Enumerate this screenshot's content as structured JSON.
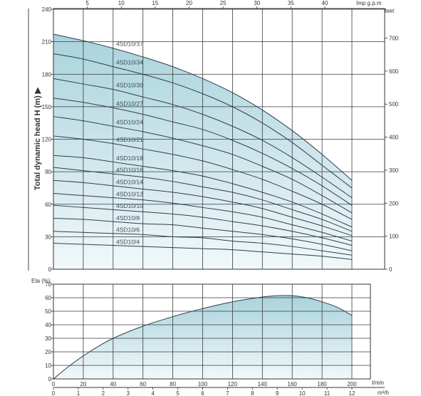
{
  "colors": {
    "fill_dark": "#a9d3dc",
    "fill_light": "#f1f8fa",
    "curve": "#2f3f4a",
    "grid": "#3a3a3a",
    "axis": "#333333",
    "text": "#333333"
  },
  "chart_data": [
    {
      "type": "line",
      "xlabel": "l/min",
      "ylabel": "Total dynamic head   H (m) ▶",
      "xlim": [
        0,
        200
      ],
      "ylim": [
        0,
        240
      ],
      "grid": true,
      "shaded_envelope": "4SD10/37",
      "axes": {
        "top": {
          "label": "Imp g.p.m",
          "ticks": [
            "5",
            "10",
            "15",
            "20",
            "25",
            "30",
            "35",
            "40"
          ],
          "tick_values": [
            5,
            10,
            15,
            20,
            25,
            30,
            35,
            40
          ]
        },
        "left": {
          "ticks": [
            "0",
            "30",
            "60",
            "90",
            "120",
            "150",
            "180",
            "210",
            "240"
          ],
          "tick_values": [
            0,
            30,
            60,
            90,
            120,
            150,
            180,
            210,
            240
          ]
        },
        "right": {
          "label": "feet",
          "ticks": [
            "0",
            "100",
            "200",
            "300",
            "400",
            "500",
            "600",
            "700"
          ],
          "tick_values": [
            0,
            100,
            200,
            300,
            400,
            500,
            600,
            700
          ]
        }
      },
      "x_grid": [
        0,
        20,
        40,
        60,
        80,
        100,
        120,
        140,
        160,
        180,
        200
      ],
      "series": [
        {
          "name": "4SD10/37",
          "x": [
            0,
            20,
            40,
            60,
            80,
            100,
            120,
            140,
            160,
            180,
            200
          ],
          "y": [
            217,
            211,
            204,
            196,
            187,
            176,
            163,
            147,
            128,
            106,
            82
          ]
        },
        {
          "name": "4SD10/34",
          "x": [
            0,
            20,
            40,
            60,
            80,
            100,
            120,
            140,
            160,
            180,
            200
          ],
          "y": [
            199,
            194,
            187,
            180,
            172,
            162,
            150,
            135,
            117,
            96,
            75
          ]
        },
        {
          "name": "4SD10/30",
          "x": [
            0,
            20,
            40,
            60,
            80,
            100,
            120,
            140,
            160,
            180,
            200
          ],
          "y": [
            176,
            171,
            166,
            159,
            152,
            143,
            132,
            119,
            103,
            85,
            66
          ]
        },
        {
          "name": "4SD10/27",
          "x": [
            0,
            20,
            40,
            60,
            80,
            100,
            120,
            140,
            160,
            180,
            200
          ],
          "y": [
            158,
            154,
            149,
            143,
            136,
            129,
            119,
            107,
            93,
            77,
            59
          ]
        },
        {
          "name": "4SD10/24",
          "x": [
            0,
            20,
            40,
            60,
            80,
            100,
            120,
            140,
            160,
            180,
            200
          ],
          "y": [
            141,
            137,
            132,
            127,
            121,
            114,
            106,
            95,
            83,
            68,
            52
          ]
        },
        {
          "name": "4SD10/21",
          "x": [
            0,
            20,
            40,
            60,
            80,
            100,
            120,
            140,
            160,
            180,
            200
          ],
          "y": [
            123,
            120,
            116,
            111,
            106,
            100,
            92,
            83,
            72,
            60,
            46
          ]
        },
        {
          "name": "4SD10/18",
          "x": [
            0,
            20,
            40,
            60,
            80,
            100,
            120,
            140,
            160,
            180,
            200
          ],
          "y": [
            105,
            103,
            99,
            95,
            91,
            86,
            79,
            71,
            62,
            51,
            39
          ]
        },
        {
          "name": "4SD10/16",
          "x": [
            0,
            20,
            40,
            60,
            80,
            100,
            120,
            140,
            160,
            180,
            200
          ],
          "y": [
            94,
            91,
            88,
            85,
            81,
            76,
            71,
            64,
            55,
            46,
            35
          ]
        },
        {
          "name": "4SD10/14",
          "x": [
            0,
            20,
            40,
            60,
            80,
            100,
            120,
            140,
            160,
            180,
            200
          ],
          "y": [
            82,
            80,
            77,
            74,
            71,
            67,
            62,
            56,
            48,
            40,
            31
          ]
        },
        {
          "name": "4SD10/12",
          "x": [
            0,
            20,
            40,
            60,
            80,
            100,
            120,
            140,
            160,
            180,
            200
          ],
          "y": [
            70,
            68,
            66,
            64,
            61,
            57,
            53,
            48,
            41,
            34,
            26
          ]
        },
        {
          "name": "4SD10/10",
          "x": [
            0,
            20,
            40,
            60,
            80,
            100,
            120,
            140,
            160,
            180,
            200
          ],
          "y": [
            59,
            57,
            55,
            53,
            51,
            48,
            44,
            40,
            35,
            29,
            22
          ]
        },
        {
          "name": "4SD10/8",
          "x": [
            0,
            20,
            40,
            60,
            80,
            100,
            120,
            140,
            160,
            180,
            200
          ],
          "y": [
            47,
            46,
            44,
            42,
            41,
            38,
            35,
            32,
            28,
            23,
            17
          ]
        },
        {
          "name": "4SD10/6",
          "x": [
            0,
            20,
            40,
            60,
            80,
            100,
            120,
            140,
            160,
            180,
            200
          ],
          "y": [
            35,
            34,
            33,
            32,
            30,
            29,
            26,
            24,
            21,
            17,
            13
          ]
        },
        {
          "name": "4SD10/4",
          "x": [
            0,
            20,
            40,
            60,
            80,
            100,
            120,
            140,
            160,
            180,
            200
          ],
          "y": [
            24,
            23,
            22,
            21,
            20,
            19,
            18,
            16,
            14,
            12,
            9
          ]
        }
      ]
    },
    {
      "type": "area",
      "ylabel": "Eta (%)",
      "xlabel": "l/min",
      "xlim": [
        0,
        200
      ],
      "ylim": [
        0,
        70
      ],
      "grid": true,
      "axes": {
        "left": {
          "ticks": [
            "0",
            "10",
            "20",
            "30",
            "40",
            "50",
            "60",
            "70"
          ],
          "tick_values": [
            0,
            10,
            20,
            30,
            40,
            50,
            60,
            70
          ]
        },
        "bottom": {
          "label": "l/min",
          "ticks": [
            "0",
            "20",
            "40",
            "60",
            "80",
            "100",
            "120",
            "140",
            "160",
            "180",
            "200"
          ],
          "tick_values": [
            0,
            20,
            40,
            60,
            80,
            100,
            120,
            140,
            160,
            180,
            200
          ]
        },
        "bottom2": {
          "label": "m³/h",
          "ticks": [
            "0",
            "1",
            "2",
            "3",
            "4",
            "5",
            "6",
            "7",
            "8",
            "9",
            "10",
            "11",
            "12"
          ],
          "tick_values": [
            0,
            1,
            2,
            3,
            4,
            5,
            6,
            7,
            8,
            9,
            10,
            11,
            12
          ]
        }
      },
      "series": [
        {
          "x": [
            0,
            10,
            20,
            30,
            40,
            60,
            80,
            100,
            120,
            140,
            150,
            160,
            170,
            180,
            190,
            200
          ],
          "y": [
            0,
            9,
            17,
            24,
            30,
            39,
            46,
            52,
            57,
            60.5,
            61.5,
            61.5,
            60,
            57,
            53,
            47
          ]
        }
      ]
    }
  ]
}
